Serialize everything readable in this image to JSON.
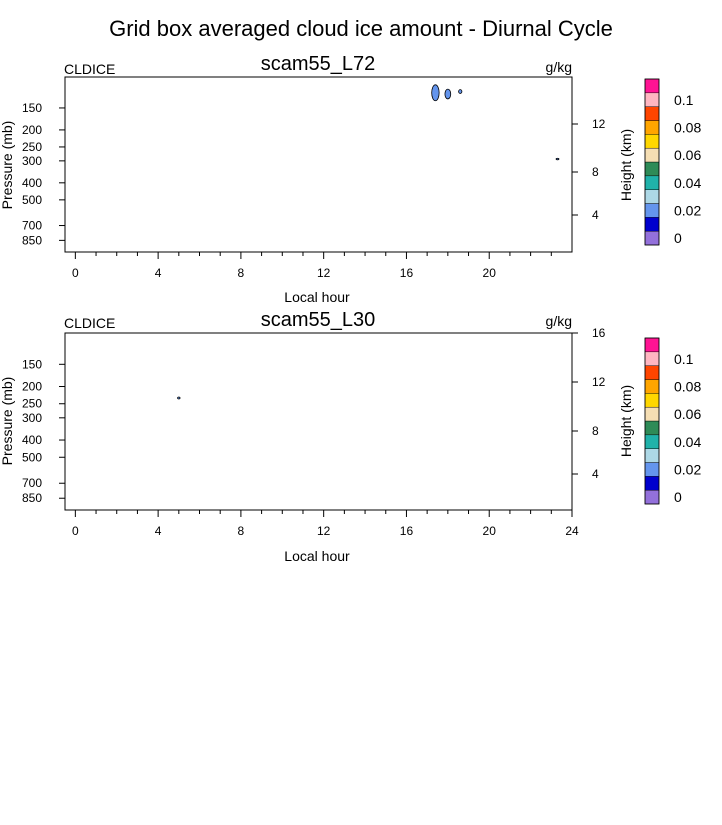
{
  "figure_title": "Grid box averaged cloud ice amount - Diurnal Cycle",
  "colorbar": {
    "colors": [
      "#9370db",
      "#0000cd",
      "#6495ed",
      "#add8e6",
      "#20b2aa",
      "#2e8b57",
      "#f5deb3",
      "#ffd700",
      "#ffa500",
      "#ff4500",
      "#ffb6c1",
      "#ff1493"
    ],
    "labels": [
      "0",
      "0.02",
      "0.04",
      "0.06",
      "0.08",
      "0.1"
    ]
  },
  "chart_data": [
    {
      "type": "contour",
      "title": "scam55_L72",
      "left_label": "CLDICE",
      "right_label": "g/kg",
      "xlabel": "Local hour",
      "ylabel": "Pressure (mb)",
      "y2label": "Height (km)",
      "xlim": [
        -0.5,
        24
      ],
      "xticks": [
        0,
        4,
        8,
        12,
        16,
        20
      ],
      "xtick_labels": [
        "0",
        "4",
        "8",
        "12",
        "16",
        "20"
      ],
      "ylim": [
        990,
        100
      ],
      "yscale": "log",
      "yticks": [
        150,
        200,
        250,
        300,
        400,
        500,
        700,
        850
      ],
      "ytick_labels": [
        "150",
        "200",
        "250",
        "300",
        "400",
        "500",
        "700",
        "850"
      ],
      "y2ticks": [
        4,
        8,
        12
      ],
      "y2tick_labels": [
        "4",
        "8",
        "12"
      ],
      "features": [
        {
          "hour": 17.4,
          "pressure": 123,
          "rx": 0.18,
          "rp_top": 112,
          "rp_bot": 138,
          "fill": "#6495ed"
        },
        {
          "hour": 18.0,
          "pressure": 125,
          "rx": 0.14,
          "rp_top": 117,
          "rp_bot": 133,
          "fill": "#6495ed"
        },
        {
          "hour": 18.6,
          "pressure": 121,
          "rx": 0.08,
          "rp_top": 118,
          "rp_bot": 124,
          "fill": "#6495ed"
        },
        {
          "hour": 23.3,
          "pressure": 293,
          "rx": 0.07,
          "rp_top": 290,
          "rp_bot": 296,
          "fill": "#6495ed"
        }
      ]
    },
    {
      "type": "contour",
      "title": "scam55_L30",
      "left_label": "CLDICE",
      "right_label": "g/kg",
      "xlabel": "Local hour",
      "ylabel": "Pressure (mb)",
      "y2label": "Height (km)",
      "xlim": [
        -0.5,
        24
      ],
      "xticks": [
        0,
        4,
        8,
        12,
        16,
        20,
        24
      ],
      "xtick_labels": [
        "0",
        "4",
        "8",
        "12",
        "16",
        "20",
        "24"
      ],
      "ylim": [
        990,
        100
      ],
      "yscale": "log",
      "yticks": [
        150,
        200,
        250,
        300,
        400,
        500,
        700,
        850
      ],
      "ytick_labels": [
        "150",
        "200",
        "250",
        "300",
        "400",
        "500",
        "700",
        "850"
      ],
      "y2ticks": [
        4,
        8,
        12,
        16
      ],
      "y2tick_labels": [
        "4",
        "8",
        "12",
        "16"
      ],
      "features": [
        {
          "hour": 5.0,
          "pressure": 232,
          "rx": 0.06,
          "rp_top": 229,
          "rp_bot": 235,
          "fill": "#6495ed"
        }
      ]
    }
  ]
}
